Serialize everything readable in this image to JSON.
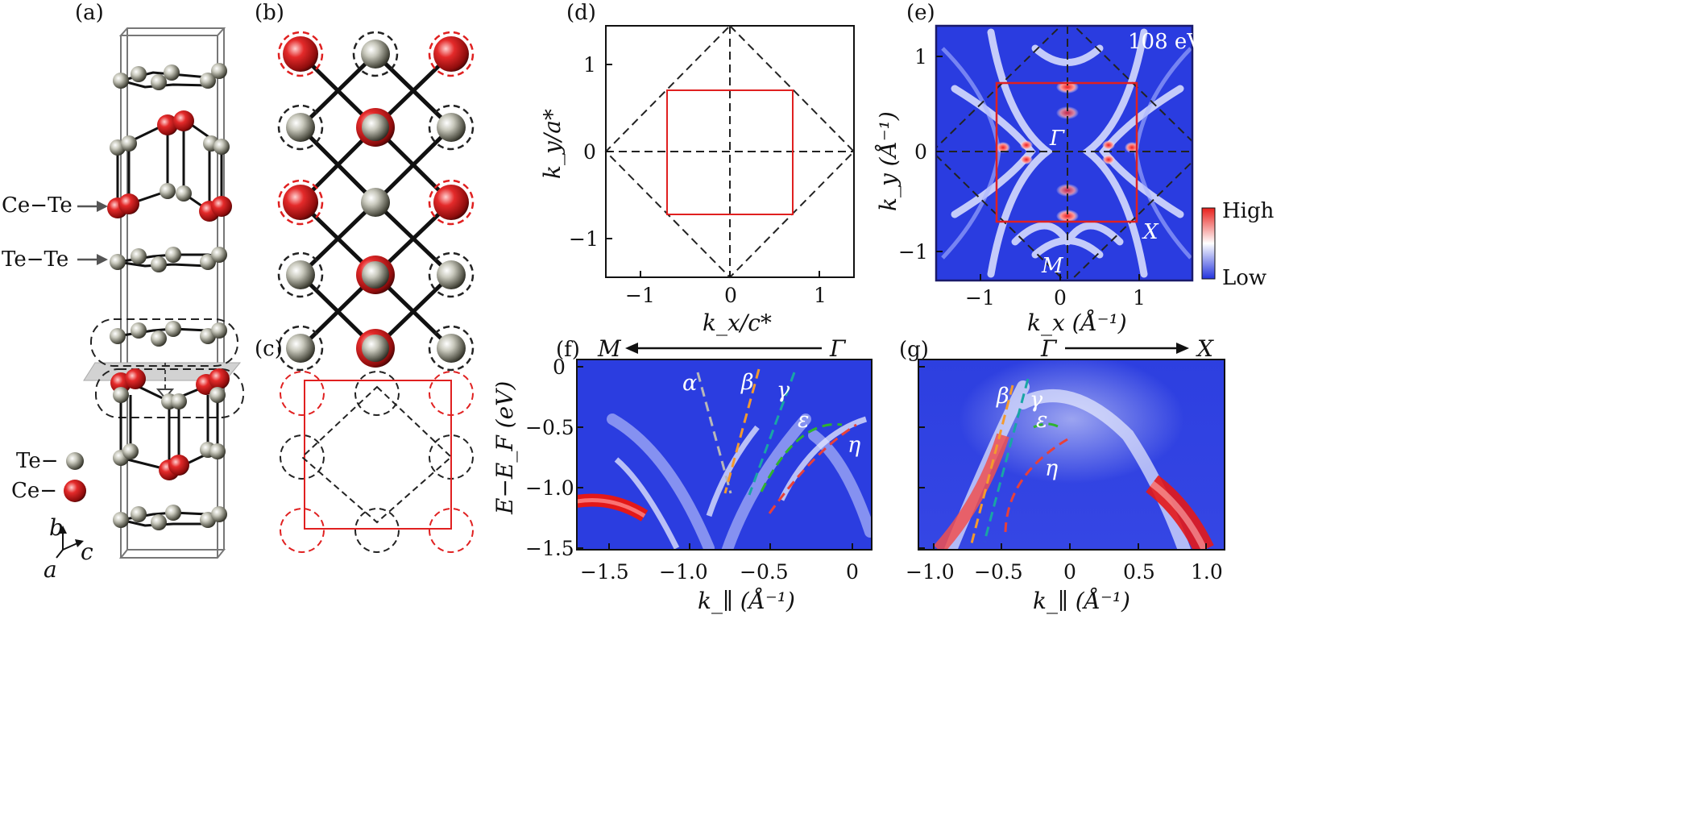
{
  "panels": {
    "a": {
      "label": "(a)",
      "layer_labels": [
        "Ce−Te",
        "Te−Te"
      ],
      "legend": [
        {
          "label": "Te−",
          "color": "#9a9a8c"
        },
        {
          "label": "Ce−",
          "color": "#d11a1a"
        }
      ],
      "axes": [
        "b",
        "c",
        "a"
      ]
    },
    "b": {
      "label": "(b)"
    },
    "c": {
      "label": "(c)"
    },
    "d": {
      "label": "(d)",
      "xlabel": "k_x/c*",
      "ylabel": "k_y/a*",
      "xticks": [
        "−1",
        "0",
        "1"
      ],
      "yticks": [
        "1",
        "0",
        "−1"
      ]
    },
    "e": {
      "label": "(e)",
      "energy": "108 eV",
      "xlabel": "k_x (Å⁻¹)",
      "ylabel": "k_y (Å⁻¹)",
      "xticks": [
        "−1",
        "0",
        "1"
      ],
      "yticks": [
        "1",
        "0",
        "−1"
      ],
      "points": [
        "Γ",
        "X",
        "M"
      ],
      "colorbar": {
        "high": "High",
        "low": "Low"
      }
    },
    "f": {
      "label": "(f)",
      "direction": {
        "from": "M",
        "to": "Γ"
      },
      "ylabel": "E−E_F (eV)",
      "xlabel": "k_∥ (Å⁻¹)",
      "xticks": [
        "−1.5",
        "−1.0",
        "−0.5",
        "0"
      ],
      "yticks": [
        "0",
        "−0.5",
        "−1.0",
        "−1.5"
      ],
      "bands": [
        "α",
        "β",
        "γ",
        "ε",
        "η"
      ]
    },
    "g": {
      "label": "(g)",
      "direction": {
        "from": "Γ",
        "to": "X"
      },
      "xlabel": "k_∥ (Å⁻¹)",
      "xticks": [
        "−1.0",
        "−0.5",
        "0",
        "0.5",
        "1.0"
      ],
      "bands": [
        "β",
        "γ",
        "ε",
        "η"
      ]
    }
  },
  "colors": {
    "ce": "#d11a1a",
    "te": "#9a9a8c",
    "bz_red": "#e02020",
    "map_blue": "#2233dd"
  }
}
